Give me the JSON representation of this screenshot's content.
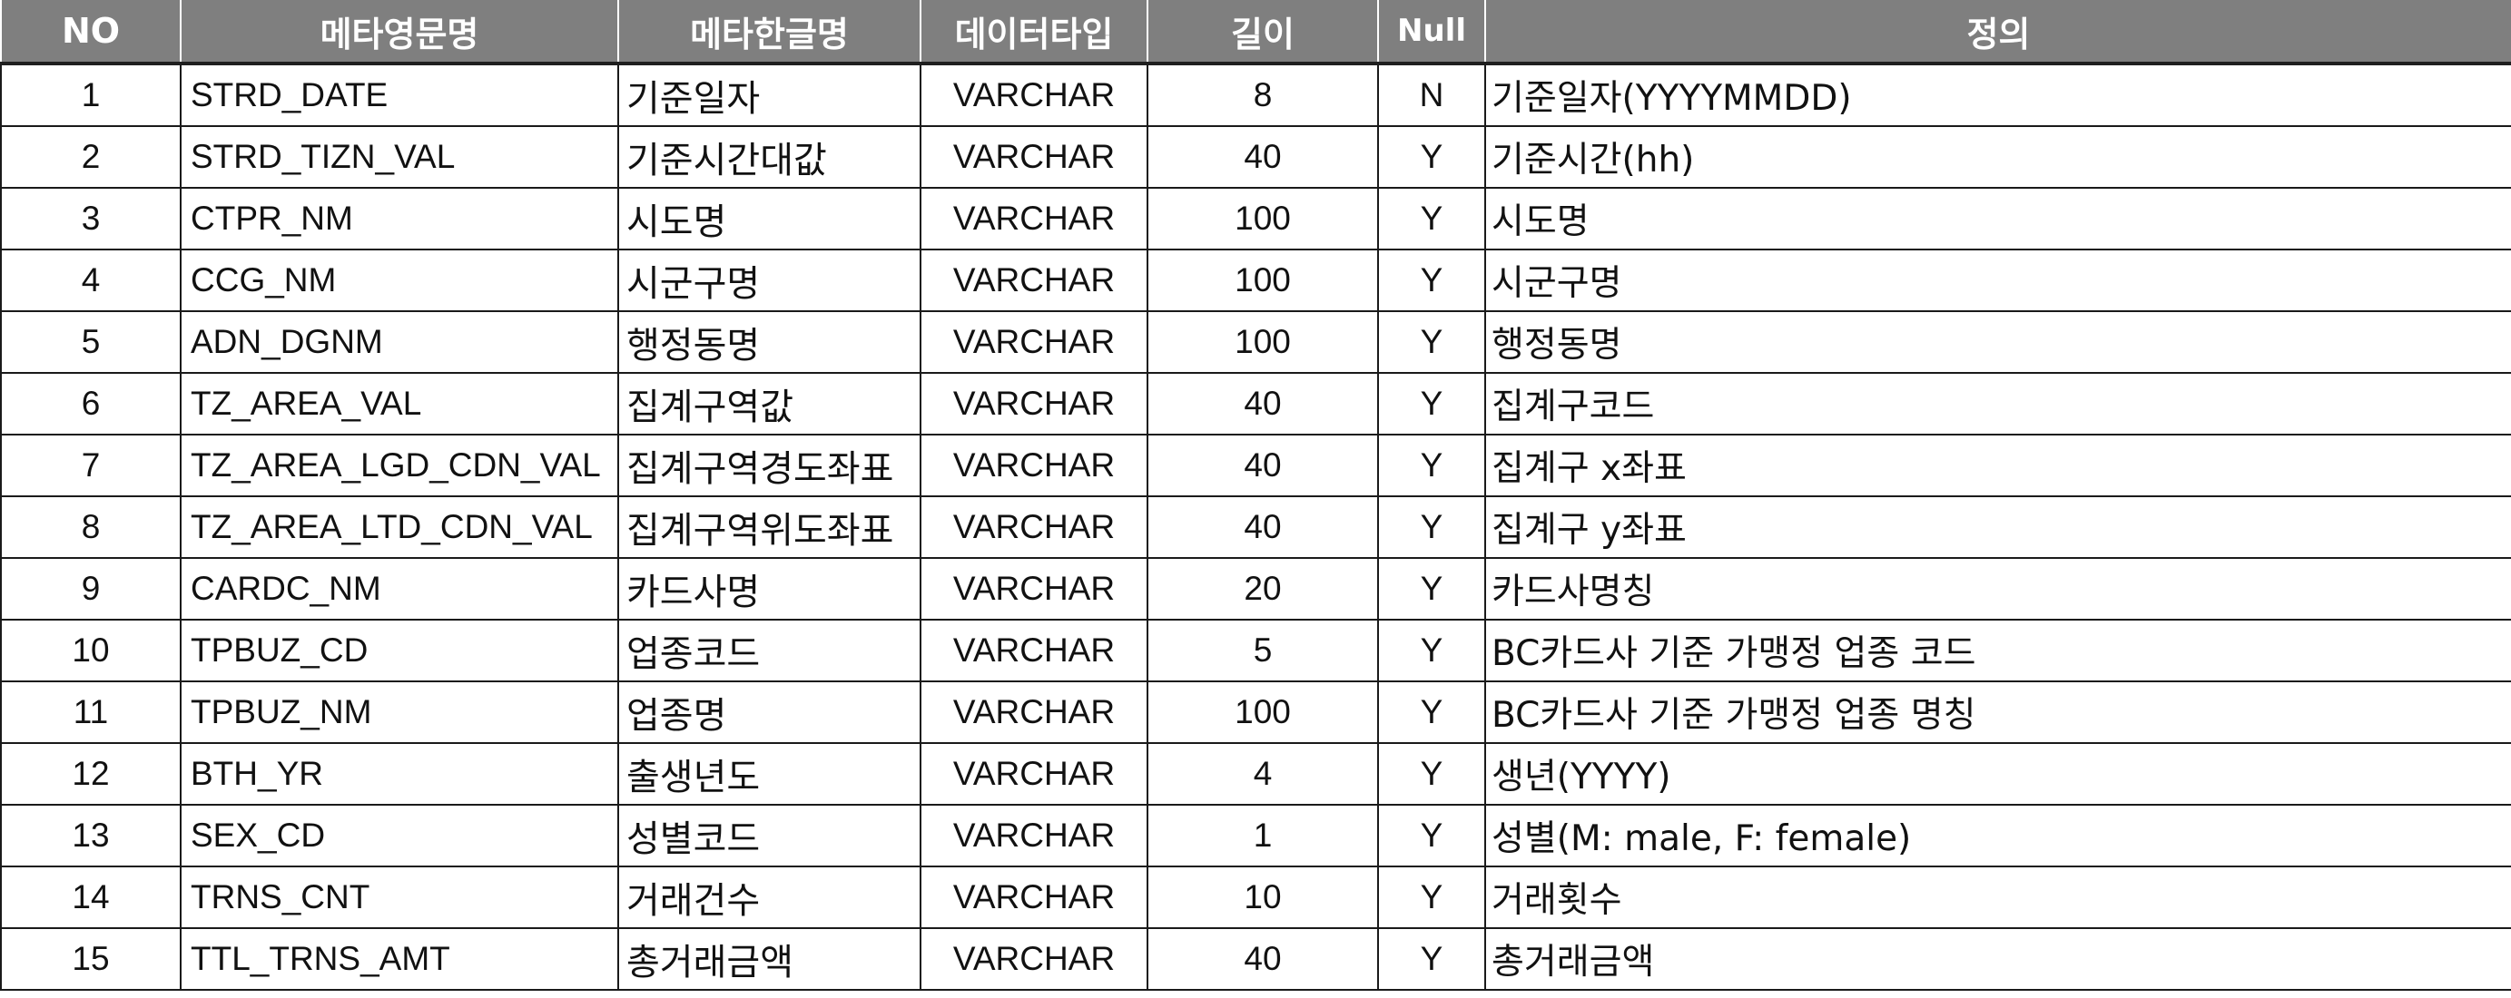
{
  "header": {
    "no": "NO",
    "meta_en": "메타영문명",
    "meta_ko": "메타한글명",
    "data_type": "데이터타입",
    "length": "길이",
    "null": "Null",
    "definition": "정의"
  },
  "rows": [
    {
      "no": "1",
      "en": "STRD_DATE",
      "ko": "기준일자",
      "type": "VARCHAR",
      "len": "8",
      "null": "N",
      "def": "기준일자(YYYYMMDD)"
    },
    {
      "no": "2",
      "en": "STRD_TIZN_VAL",
      "ko": "기준시간대값",
      "type": "VARCHAR",
      "len": "40",
      "null": "Y",
      "def": "기준시간(hh)"
    },
    {
      "no": "3",
      "en": "CTPR_NM",
      "ko": "시도명",
      "type": "VARCHAR",
      "len": "100",
      "null": "Y",
      "def": "시도명"
    },
    {
      "no": "4",
      "en": "CCG_NM",
      "ko": "시군구명",
      "type": "VARCHAR",
      "len": "100",
      "null": "Y",
      "def": "시군구명"
    },
    {
      "no": "5",
      "en": "ADN_DGNM",
      "ko": "행정동명",
      "type": "VARCHAR",
      "len": "100",
      "null": "Y",
      "def": "행정동명"
    },
    {
      "no": "6",
      "en": "TZ_AREA_VAL",
      "ko": "집계구역값",
      "type": "VARCHAR",
      "len": "40",
      "null": "Y",
      "def": "집계구코드"
    },
    {
      "no": "7",
      "en": "TZ_AREA_LGD_CDN_VAL",
      "ko": "집계구역경도좌표",
      "type": "VARCHAR",
      "len": "40",
      "null": "Y",
      "def": "집계구 x좌표"
    },
    {
      "no": "8",
      "en": "TZ_AREA_LTD_CDN_VAL",
      "ko": "집계구역위도좌표",
      "type": "VARCHAR",
      "len": "40",
      "null": "Y",
      "def": "집계구 y좌표"
    },
    {
      "no": "9",
      "en": "CARDC_NM",
      "ko": "카드사명",
      "type": "VARCHAR",
      "len": "20",
      "null": "Y",
      "def": "카드사명칭"
    },
    {
      "no": "10",
      "en": "TPBUZ_CD",
      "ko": "업종코드",
      "type": "VARCHAR",
      "len": "5",
      "null": "Y",
      "def": "BC카드사 기준 가맹정 업종 코드"
    },
    {
      "no": "11",
      "en": "TPBUZ_NM",
      "ko": "업종명",
      "type": "VARCHAR",
      "len": "100",
      "null": "Y",
      "def": "BC카드사 기준 가맹정 업종 명칭"
    },
    {
      "no": "12",
      "en": "BTH_YR",
      "ko": "출생년도",
      "type": "VARCHAR",
      "len": "4",
      "null": "Y",
      "def": "생년(YYYY)"
    },
    {
      "no": "13",
      "en": "SEX_CD",
      "ko": "성별코드",
      "type": "VARCHAR",
      "len": "1",
      "null": "Y",
      "def": "성별(M: male, F: female)"
    },
    {
      "no": "14",
      "en": "TRNS_CNT",
      "ko": "거래건수",
      "type": "VARCHAR",
      "len": "10",
      "null": "Y",
      "def": "거래횟수"
    },
    {
      "no": "15",
      "en": "TTL_TRNS_AMT",
      "ko": "총거래금액",
      "type": "VARCHAR",
      "len": "40",
      "null": "Y",
      "def": "총거래금액"
    }
  ],
  "colors": {
    "header_bg": "#7f7f7f",
    "header_text": "#ffffff",
    "border": "#1a1a1a"
  }
}
